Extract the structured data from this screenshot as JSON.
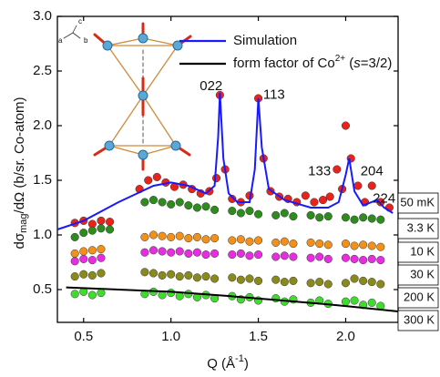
{
  "chart_data": {
    "type": "scatter",
    "xlabel": [
      "Q (Å",
      "-1",
      ")"
    ],
    "ylabel": [
      "dσ",
      "mag",
      "/dΩ (b/sr. Co-atom)"
    ],
    "xlim": [
      0.35,
      2.3
    ],
    "ylim": [
      0.2,
      3.0
    ],
    "xticks": [
      0.5,
      {
        "value": 1,
        "label": "1.0"
      },
      1.5,
      {
        "value": 2,
        "label": "2.0"
      }
    ],
    "yticks": [
      0.5,
      {
        "value": 1,
        "label": "1.0"
      },
      1.5,
      {
        "value": 2,
        "label": "2.0"
      },
      2.5,
      {
        "value": 3,
        "label": "3.0"
      }
    ],
    "inset_axes_labels": [
      "a",
      "b",
      "c"
    ],
    "annotations": [
      "022",
      "113",
      "133",
      "204",
      "224"
    ],
    "series": [
      {
        "name": "50 mK",
        "color": "#e8231c",
        "x": [
          0.45,
          0.5,
          0.55,
          0.6,
          0.65,
          0.82,
          0.87,
          0.92,
          0.97,
          1.02,
          1.07,
          1.12,
          1.17,
          1.22,
          1.26,
          1.28,
          1.31,
          1.35,
          1.4,
          1.45,
          1.5,
          1.53,
          1.57,
          1.62,
          1.67,
          1.72,
          1.77,
          1.82,
          1.87,
          1.91,
          1.95,
          1.98,
          2.0,
          2.03,
          2.07,
          2.11,
          2.15,
          2.2,
          2.25
        ],
        "values": [
          1.11,
          1.13,
          1.1,
          1.13,
          1.12,
          1.42,
          1.5,
          1.53,
          1.48,
          1.44,
          1.46,
          1.42,
          1.38,
          1.4,
          1.52,
          2.28,
          1.6,
          1.33,
          1.3,
          1.36,
          2.25,
          1.7,
          1.4,
          1.35,
          1.33,
          1.3,
          1.36,
          1.3,
          1.32,
          1.35,
          1.6,
          1.42,
          2.0,
          1.7,
          1.45,
          1.3,
          1.45,
          1.3,
          1.25
        ]
      },
      {
        "name": "3.3 K",
        "color": "#2e8b1e",
        "x": [
          0.45,
          0.5,
          0.55,
          0.6,
          0.65,
          0.85,
          0.9,
          0.95,
          1.0,
          1.05,
          1.1,
          1.15,
          1.2,
          1.25,
          1.35,
          1.4,
          1.45,
          1.5,
          1.6,
          1.65,
          1.7,
          1.8,
          1.85,
          1.9,
          2.0,
          2.05,
          2.1,
          2.15,
          2.2
        ],
        "values": [
          0.98,
          1.02,
          1.04,
          1.06,
          1.05,
          1.3,
          1.32,
          1.3,
          1.28,
          1.3,
          1.27,
          1.25,
          1.26,
          1.23,
          1.22,
          1.2,
          1.22,
          1.19,
          1.18,
          1.2,
          1.17,
          1.18,
          1.16,
          1.17,
          1.16,
          1.14,
          1.16,
          1.15,
          1.14
        ]
      },
      {
        "name": "10 K",
        "color": "#f39019",
        "x": [
          0.45,
          0.5,
          0.55,
          0.6,
          0.85,
          0.9,
          0.95,
          1.0,
          1.05,
          1.1,
          1.15,
          1.2,
          1.25,
          1.35,
          1.4,
          1.45,
          1.5,
          1.6,
          1.65,
          1.7,
          1.8,
          1.85,
          1.9,
          2.0,
          2.05,
          2.1,
          2.15,
          2.2
        ],
        "values": [
          0.83,
          0.85,
          0.86,
          0.87,
          0.98,
          1.0,
          0.99,
          0.98,
          0.99,
          0.97,
          0.98,
          0.96,
          0.97,
          0.95,
          0.96,
          0.94,
          0.95,
          0.93,
          0.94,
          0.92,
          0.93,
          0.92,
          0.91,
          0.92,
          0.9,
          0.91,
          0.9,
          0.89
        ]
      },
      {
        "name": "30 K",
        "color": "#e62ee0",
        "x": [
          0.45,
          0.5,
          0.55,
          0.6,
          0.85,
          0.9,
          0.95,
          1.0,
          1.05,
          1.1,
          1.15,
          1.2,
          1.25,
          1.35,
          1.4,
          1.45,
          1.5,
          1.6,
          1.65,
          1.7,
          1.8,
          1.85,
          1.9,
          2.0,
          2.05,
          2.1,
          2.15,
          2.2
        ],
        "values": [
          0.76,
          0.78,
          0.77,
          0.79,
          0.84,
          0.86,
          0.85,
          0.84,
          0.85,
          0.83,
          0.84,
          0.82,
          0.83,
          0.82,
          0.83,
          0.81,
          0.82,
          0.8,
          0.81,
          0.8,
          0.79,
          0.8,
          0.78,
          0.79,
          0.78,
          0.77,
          0.78,
          0.77
        ]
      },
      {
        "name": "200 K",
        "color": "#8a8a1c",
        "x": [
          0.45,
          0.5,
          0.55,
          0.6,
          0.85,
          0.9,
          0.95,
          1.0,
          1.05,
          1.1,
          1.15,
          1.2,
          1.25,
          1.35,
          1.4,
          1.45,
          1.5,
          1.6,
          1.65,
          1.7,
          1.8,
          1.85,
          1.9,
          2.0,
          2.05,
          2.1,
          2.15,
          2.2
        ],
        "values": [
          0.62,
          0.64,
          0.63,
          0.65,
          0.66,
          0.65,
          0.63,
          0.64,
          0.62,
          0.63,
          0.61,
          0.62,
          0.6,
          0.61,
          0.59,
          0.6,
          0.58,
          0.59,
          0.57,
          0.58,
          0.56,
          0.57,
          0.55,
          0.56,
          0.6,
          0.58,
          0.57,
          0.55
        ]
      },
      {
        "name": "300 K",
        "color": "#3fdc2e",
        "x": [
          0.45,
          0.5,
          0.55,
          0.6,
          0.85,
          0.9,
          0.95,
          1.0,
          1.05,
          1.1,
          1.15,
          1.2,
          1.25,
          1.35,
          1.4,
          1.45,
          1.5,
          1.6,
          1.65,
          1.7,
          1.8,
          1.85,
          1.9,
          2.0,
          2.05,
          2.1,
          2.15,
          2.2
        ],
        "values": [
          0.46,
          0.48,
          0.45,
          0.47,
          0.46,
          0.48,
          0.45,
          0.47,
          0.44,
          0.46,
          0.43,
          0.45,
          0.42,
          0.44,
          0.41,
          0.43,
          0.4,
          0.42,
          0.39,
          0.41,
          0.38,
          0.4,
          0.37,
          0.39,
          0.4,
          0.36,
          0.38,
          0.35
        ]
      },
      {
        "name": "Simulation",
        "type": "line",
        "color": "#1a1aff",
        "x": [
          0.35,
          0.5,
          0.7,
          0.9,
          1.0,
          1.1,
          1.2,
          1.25,
          1.27,
          1.28,
          1.3,
          1.33,
          1.38,
          1.45,
          1.48,
          1.5,
          1.52,
          1.56,
          1.65,
          1.8,
          1.9,
          1.96,
          2.0,
          2.02,
          2.05,
          2.1,
          2.18,
          2.22,
          2.27
        ],
        "values": [
          1.05,
          1.13,
          1.3,
          1.45,
          1.48,
          1.45,
          1.38,
          1.45,
          1.9,
          2.3,
          1.7,
          1.38,
          1.3,
          1.3,
          1.6,
          2.25,
          1.8,
          1.42,
          1.32,
          1.25,
          1.25,
          1.3,
          1.55,
          1.7,
          1.4,
          1.27,
          1.32,
          1.25,
          1.2
        ]
      },
      {
        "name": [
          "form factor of Co",
          "2+",
          " (",
          "s",
          "=3/2)"
        ],
        "type": "line",
        "color": "#000000",
        "x": [
          0.4,
          0.7,
          1.0,
          1.3,
          1.6,
          1.9,
          2.3
        ],
        "values": [
          0.52,
          0.5,
          0.48,
          0.445,
          0.405,
          0.365,
          0.3
        ]
      }
    ]
  }
}
